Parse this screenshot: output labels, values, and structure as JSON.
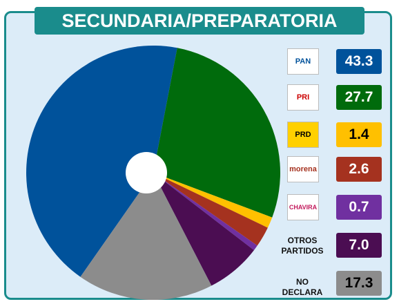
{
  "chart_data": {
    "type": "pie",
    "title": "SECUNDARIA/PREPARATORIA",
    "categories": [
      "PAN",
      "PRI",
      "PRD",
      "morena",
      "CHAVIRA",
      "OTROS PARTIDOS",
      "NO DECLARA"
    ],
    "values": [
      43.3,
      27.7,
      1.4,
      2.6,
      0.7,
      7.0,
      17.3
    ],
    "value_labels": [
      "43.3",
      "27.7",
      "1.4",
      "2.6",
      "0.7",
      "7.0",
      "17.3"
    ],
    "colors": [
      "#00529b",
      "#006b0c",
      "#ffc000",
      "#a5321f",
      "#7030a0",
      "#4b0d52",
      "#8c8c8c"
    ]
  }
}
